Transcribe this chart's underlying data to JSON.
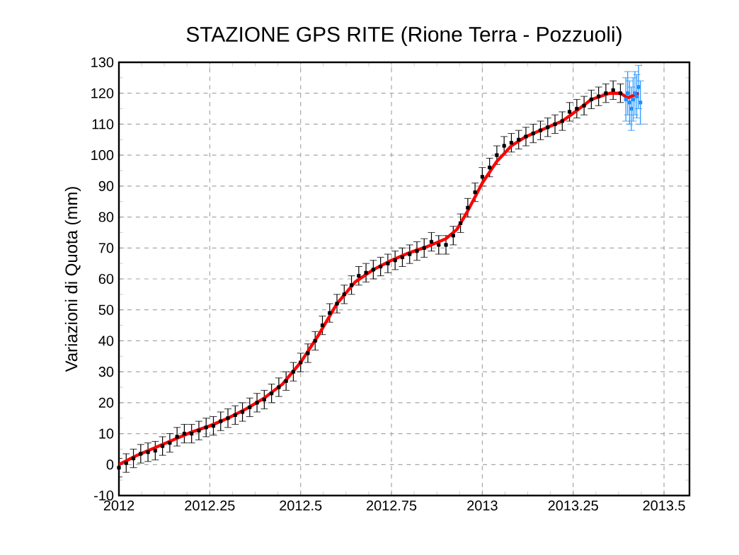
{
  "chart_data": {
    "type": "scatter",
    "title": "STAZIONE GPS RITE (Rione Terra - Pozzuoli)",
    "ylabel": "Variazioni di Quota (mm)",
    "xlim": [
      2012,
      2013.57
    ],
    "ylim": [
      -10,
      130
    ],
    "xticks": [
      2012,
      2012.25,
      2012.5,
      2012.75,
      2013,
      2013.25,
      2013.5
    ],
    "yticks": [
      -10,
      0,
      10,
      20,
      30,
      40,
      50,
      60,
      70,
      80,
      90,
      100,
      110,
      120,
      130
    ],
    "grid": true,
    "series": [
      {
        "type": "scatter",
        "color": "#000000",
        "marker": "square",
        "x": [
          2012.0,
          2012.02,
          2012.04,
          2012.06,
          2012.08,
          2012.1,
          2012.12,
          2012.14,
          2012.16,
          2012.18,
          2012.2,
          2012.22,
          2012.24,
          2012.26,
          2012.28,
          2012.3,
          2012.32,
          2012.34,
          2012.36,
          2012.38,
          2012.4,
          2012.42,
          2012.44,
          2012.46,
          2012.48,
          2012.5,
          2012.52,
          2012.54,
          2012.56,
          2012.58,
          2012.6,
          2012.62,
          2012.64,
          2012.66,
          2012.68,
          2012.7,
          2012.72,
          2012.74,
          2012.76,
          2012.78,
          2012.8,
          2012.82,
          2012.84,
          2012.86,
          2012.88,
          2012.9,
          2012.92,
          2012.94,
          2012.96,
          2012.98,
          2013.0,
          2013.02,
          2013.04,
          2013.06,
          2013.08,
          2013.1,
          2013.12,
          2013.14,
          2013.16,
          2013.18,
          2013.2,
          2013.22,
          2013.24,
          2013.26,
          2013.28,
          2013.3,
          2013.32,
          2013.34,
          2013.36,
          2013.38
        ],
        "values": [
          -1,
          0.5,
          2,
          3.5,
          4,
          4.5,
          6,
          7,
          9,
          10,
          10,
          11,
          12,
          12.5,
          14,
          15,
          16,
          17,
          18.5,
          20,
          21,
          23,
          25,
          27,
          30,
          33,
          36,
          40,
          45,
          49,
          52,
          55,
          58,
          61,
          62,
          63,
          64,
          65,
          66,
          67,
          68,
          69,
          70,
          72,
          71,
          71,
          74,
          78,
          83,
          88,
          93,
          96,
          100,
          103,
          104,
          105,
          106,
          107,
          108,
          109,
          110,
          111,
          114,
          115,
          116,
          118,
          119,
          120,
          121,
          120
        ],
        "errors": [
          3,
          3,
          3,
          3,
          3,
          3,
          3,
          3,
          3,
          3,
          3,
          3,
          3,
          3,
          3,
          3,
          3,
          3,
          3,
          3,
          3,
          3,
          3,
          3,
          3,
          3,
          3,
          3,
          3,
          3,
          3,
          3,
          3,
          3,
          3,
          3,
          3,
          3,
          3,
          3,
          3,
          3,
          3,
          3,
          3,
          3,
          3,
          3,
          3,
          3,
          3,
          3,
          3,
          3,
          3,
          3,
          3,
          3,
          3,
          3,
          3,
          3,
          3,
          3,
          3,
          3,
          3,
          3,
          3,
          3
        ]
      },
      {
        "type": "scatter",
        "color": "#1e90ff",
        "marker": "square",
        "x": [
          2013.395,
          2013.4,
          2013.405,
          2013.41,
          2013.415,
          2013.42,
          2013.425,
          2013.43,
          2013.435
        ],
        "values": [
          118,
          120,
          117,
          115,
          118,
          120,
          119,
          122,
          117
        ],
        "errors": [
          7,
          7,
          7,
          7,
          7,
          7,
          7,
          7,
          7
        ]
      },
      {
        "type": "line",
        "color": "#ff0000",
        "marker": "none",
        "line_style": "solid",
        "x": [
          2012.0,
          2012.05,
          2012.1,
          2012.15,
          2012.2,
          2012.25,
          2012.3,
          2012.35,
          2012.4,
          2012.45,
          2012.5,
          2012.55,
          2012.6,
          2012.65,
          2012.7,
          2012.75,
          2012.8,
          2012.85,
          2012.9,
          2012.93,
          2012.96,
          2013.0,
          2013.04,
          2013.08,
          2013.12,
          2013.17,
          2013.22,
          2013.25,
          2013.3,
          2013.35,
          2013.38,
          2013.4,
          2013.43
        ],
        "values": [
          0,
          3,
          5.5,
          8,
          10.5,
          12.5,
          15,
          18,
          21.5,
          26,
          33,
          42,
          52,
          59,
          63,
          66,
          68.5,
          70.5,
          73,
          76,
          82,
          91,
          98,
          103,
          106,
          108.5,
          111,
          113.5,
          118,
          120,
          120,
          118.5,
          120
        ]
      }
    ]
  }
}
